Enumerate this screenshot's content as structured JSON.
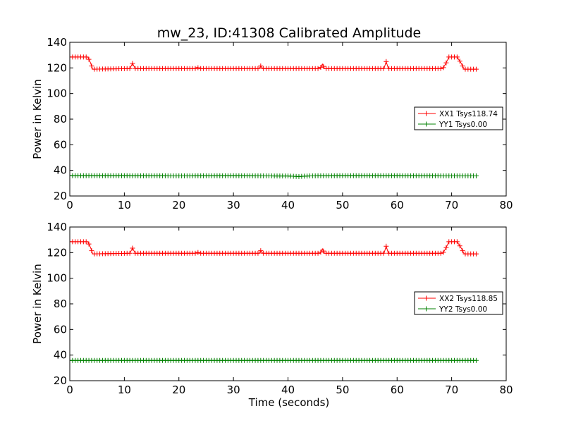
{
  "figure": {
    "title": "mw_23, ID:41308 Calibrated Amplitude",
    "xlabel": "Time (seconds)"
  },
  "colors": {
    "xx": "#ff0000",
    "yy": "#008000"
  },
  "chart_data": [
    {
      "type": "line",
      "ylabel": "Power in Kelvin",
      "xlim": [
        0,
        80
      ],
      "ylim": [
        20,
        140
      ],
      "xticks": [
        "0",
        "10",
        "20",
        "30",
        "40",
        "50",
        "60",
        "70",
        "80"
      ],
      "yticks": [
        "20",
        "40",
        "60",
        "80",
        "100",
        "120",
        "140"
      ],
      "legend_position": "center-right",
      "marker": "+",
      "series": [
        {
          "name": "XX1 Tsys118.74",
          "color": "#ff0000",
          "points": [
            [
              0,
              128.5
            ],
            [
              3.3,
              128.5
            ],
            [
              3.8,
              124
            ],
            [
              4.2,
              119
            ],
            [
              11,
              119.5
            ],
            [
              11.5,
              123.5
            ],
            [
              12,
              119.5
            ],
            [
              23,
              119.5
            ],
            [
              23.3,
              120.5
            ],
            [
              23.8,
              119.5
            ],
            [
              34.7,
              119.5
            ],
            [
              35,
              121.5
            ],
            [
              35.4,
              119.5
            ],
            [
              45.9,
              119.5
            ],
            [
              46.3,
              123
            ],
            [
              46.7,
              119.5
            ],
            [
              57.6,
              119.5
            ],
            [
              58,
              125
            ],
            [
              58.4,
              119.5
            ],
            [
              68.4,
              119.5
            ],
            [
              69,
              124
            ],
            [
              69.5,
              128.5
            ],
            [
              71,
              128.5
            ],
            [
              71.7,
              124
            ],
            [
              72.3,
              119
            ],
            [
              74.6,
              119
            ]
          ]
        },
        {
          "name": "YY1 Tsys0.00",
          "color": "#008000",
          "points": [
            [
              0,
              35.8
            ],
            [
              10,
              35.8
            ],
            [
              20,
              35.7
            ],
            [
              30,
              35.8
            ],
            [
              40,
              35.6
            ],
            [
              42,
              35.2
            ],
            [
              44,
              35.7
            ],
            [
              50,
              35.8
            ],
            [
              60,
              35.8
            ],
            [
              70,
              35.7
            ],
            [
              74.6,
              35.7
            ]
          ]
        }
      ]
    },
    {
      "type": "line",
      "ylabel": "Power in Kelvin",
      "xlabel": "Time (seconds)",
      "xlim": [
        0,
        80
      ],
      "ylim": [
        20,
        140
      ],
      "xticks": [
        "0",
        "10",
        "20",
        "30",
        "40",
        "50",
        "60",
        "70",
        "80"
      ],
      "yticks": [
        "20",
        "40",
        "60",
        "80",
        "100",
        "120",
        "140"
      ],
      "legend_position": "center-right",
      "marker": "+",
      "series": [
        {
          "name": "XX2 Tsys118.85",
          "color": "#ff0000",
          "points": [
            [
              0,
              128.5
            ],
            [
              3.3,
              128.5
            ],
            [
              3.8,
              124
            ],
            [
              4.2,
              119
            ],
            [
              11,
              119.5
            ],
            [
              11.5,
              123.5
            ],
            [
              12,
              119.5
            ],
            [
              23,
              119.5
            ],
            [
              23.3,
              120.5
            ],
            [
              23.8,
              119.5
            ],
            [
              34.7,
              119.5
            ],
            [
              35,
              121.5
            ],
            [
              35.4,
              119.5
            ],
            [
              45.9,
              119.5
            ],
            [
              46.3,
              123
            ],
            [
              46.7,
              119.5
            ],
            [
              57.6,
              119.5
            ],
            [
              58,
              125
            ],
            [
              58.4,
              119.5
            ],
            [
              68.4,
              119.5
            ],
            [
              69,
              124
            ],
            [
              69.5,
              128.5
            ],
            [
              71,
              128.5
            ],
            [
              71.7,
              124
            ],
            [
              72.3,
              119
            ],
            [
              74.6,
              119
            ]
          ]
        },
        {
          "name": "YY2 Tsys0.00",
          "color": "#008000",
          "points": [
            [
              0,
              35.8
            ],
            [
              10,
              35.8
            ],
            [
              20,
              35.8
            ],
            [
              30,
              35.8
            ],
            [
              40,
              35.8
            ],
            [
              50,
              35.8
            ],
            [
              60,
              35.8
            ],
            [
              70,
              35.8
            ],
            [
              74.6,
              35.8
            ]
          ]
        }
      ]
    }
  ]
}
